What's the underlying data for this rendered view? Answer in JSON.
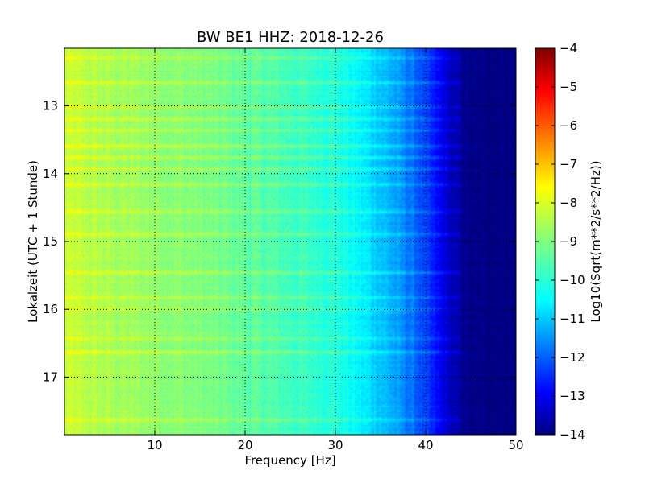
{
  "chart_data": {
    "type": "heatmap",
    "title": "BW BE1 HHZ: 2018-12-26",
    "xlabel": "Frequency [Hz]",
    "ylabel": "Lokalzeit (UTC + 1 Stunde)",
    "xlim": [
      0,
      50
    ],
    "ylim": [
      12.15,
      17.85
    ],
    "y_inverted": true,
    "xticks": [
      10,
      20,
      30,
      40,
      50
    ],
    "yticks": [
      13,
      14,
      15,
      16,
      17
    ],
    "grid": true,
    "colormap": "jet",
    "colorbar": {
      "label": "Log10(Sqrt(m**2/s**2/Hz))",
      "range": [
        -14,
        -4
      ],
      "ticks": [
        -4,
        -5,
        -6,
        -7,
        -8,
        -9,
        -10,
        -11,
        -12,
        -13,
        -14
      ]
    },
    "spectral_profile": {
      "frequency_hz": [
        0,
        5,
        10,
        15,
        20,
        25,
        30,
        33,
        36,
        39,
        41,
        43,
        45,
        50
      ],
      "log10_amplitude": [
        -8.3,
        -8.6,
        -8.8,
        -9.0,
        -9.3,
        -9.6,
        -9.9,
        -10.4,
        -11.0,
        -11.8,
        -12.6,
        -13.5,
        -14.0,
        -14.0
      ]
    },
    "horizontal_bands_hour": [
      12.28,
      12.65,
      13.0,
      13.18,
      13.35,
      13.58,
      13.75,
      13.92,
      14.15,
      14.55,
      14.88,
      15.45,
      15.82,
      15.98,
      16.42,
      16.62,
      17.62
    ]
  }
}
